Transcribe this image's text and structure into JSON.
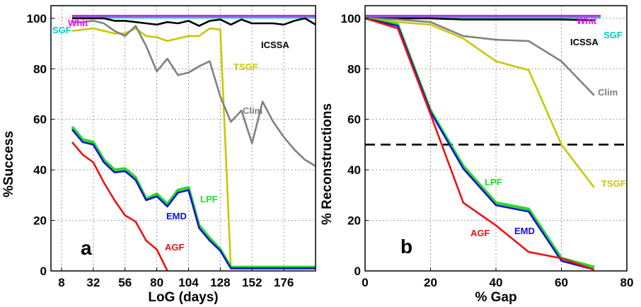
{
  "chart_data": [
    {
      "type": "line",
      "panel_label": "a",
      "xlabel": "LoG (days)",
      "ylabel": "%Success",
      "xlim": [
        0,
        200
      ],
      "ylim": [
        0,
        105
      ],
      "xticks": [
        8,
        32,
        56,
        80,
        104,
        128,
        152,
        176
      ],
      "yticks": [
        0,
        20,
        40,
        60,
        80,
        100
      ],
      "grid": true,
      "series": [
        {
          "name": "Whit",
          "color": "#ff00ff",
          "x": [
            16,
            200
          ],
          "y": [
            101,
            101
          ]
        },
        {
          "name": "SGF",
          "color": "#00cccc",
          "x": [
            16,
            200
          ],
          "y": [
            100.3,
            100.3
          ]
        },
        {
          "name": "ICSSA",
          "color": "#000000",
          "x": [
            16,
            24,
            32,
            40,
            48,
            56,
            64,
            72,
            80,
            88,
            96,
            104,
            112,
            120,
            128,
            136,
            144,
            152,
            160,
            168,
            176,
            184,
            192,
            200
          ],
          "y": [
            100,
            100,
            100,
            100,
            99,
            99,
            98.5,
            98,
            97.5,
            98.5,
            98,
            99,
            97,
            99,
            99.5,
            97.5,
            99.5,
            98,
            98,
            98,
            97.5,
            99,
            100,
            97.5
          ]
        },
        {
          "name": "TSGF",
          "color": "#c8c800",
          "x": [
            16,
            24,
            32,
            40,
            48,
            56,
            64,
            72,
            80,
            88,
            96,
            104,
            112,
            120,
            128,
            136,
            200
          ],
          "y": [
            95,
            95.5,
            96,
            95,
            94,
            94,
            96,
            93,
            92.5,
            91,
            92,
            93,
            93,
            96,
            95.5,
            1,
            1
          ]
        },
        {
          "name": "Clim",
          "color": "#808080",
          "x": [
            16,
            24,
            32,
            40,
            48,
            56,
            64,
            72,
            80,
            88,
            96,
            104,
            112,
            120,
            128,
            136,
            144,
            152,
            160,
            168,
            176,
            184,
            192,
            200
          ],
          "y": [
            98.5,
            98.5,
            99,
            98,
            95,
            93,
            97,
            89,
            79,
            84,
            77.5,
            78.5,
            81,
            83,
            69,
            59,
            63.5,
            50.5,
            67,
            59,
            53,
            48,
            44,
            41.5
          ]
        },
        {
          "name": "LPF",
          "color": "#22dd22",
          "x": [
            16,
            24,
            32,
            40,
            48,
            56,
            64,
            72,
            80,
            88,
            96,
            104,
            112,
            120,
            128,
            136,
            200
          ],
          "y": [
            57,
            52,
            51,
            44,
            40,
            40.5,
            37,
            28.5,
            30.5,
            26.5,
            32,
            33,
            18,
            13,
            8.5,
            1.5,
            1.5
          ]
        },
        {
          "name": "EMD",
          "color": "#1010dd",
          "x": [
            16,
            24,
            32,
            40,
            48,
            56,
            64,
            72,
            80,
            88,
            96,
            104,
            112,
            120,
            128,
            136,
            200
          ],
          "y": [
            56,
            51,
            50,
            43,
            39,
            39.5,
            36,
            28,
            29.5,
            25.5,
            31,
            32,
            17,
            12,
            8,
            1,
            1
          ]
        },
        {
          "name": "AGF",
          "color": "#ee1111",
          "x": [
            16,
            24,
            32,
            40,
            48,
            56,
            64,
            72,
            80,
            88
          ],
          "y": [
            51,
            46,
            43,
            35,
            28,
            22,
            19.5,
            12,
            8.5,
            0
          ]
        }
      ]
    },
    {
      "type": "line",
      "panel_label": "b",
      "xlabel": "% Gap",
      "ylabel": "% Reconstructions",
      "xlim": [
        0,
        80
      ],
      "ylim": [
        0,
        105
      ],
      "xticks": [
        0,
        20,
        40,
        60,
        80
      ],
      "yticks": [
        0,
        20,
        40,
        60,
        80,
        100
      ],
      "grid": true,
      "reference_line": {
        "y": 50,
        "color": "#000000",
        "style": "dashed"
      },
      "series": [
        {
          "name": "Whit",
          "color": "#ff00ff",
          "x": [
            0,
            72
          ],
          "y": [
            101,
            101
          ]
        },
        {
          "name": "SGF",
          "color": "#00cccc",
          "x": [
            0,
            72
          ],
          "y": [
            100.3,
            100.3
          ]
        },
        {
          "name": "ICSSA",
          "color": "#000000",
          "x": [
            0,
            10,
            20,
            30,
            40,
            50,
            60,
            70
          ],
          "y": [
            100,
            100,
            100,
            99.5,
            99.5,
            99.5,
            99.5,
            99.2
          ]
        },
        {
          "name": "Clim",
          "color": "#808080",
          "x": [
            0,
            10,
            20,
            30,
            40,
            50,
            60,
            70
          ],
          "y": [
            100,
            99.5,
            98.5,
            93,
            91.5,
            91,
            83,
            69.5
          ]
        },
        {
          "name": "TSGF",
          "color": "#c8c800",
          "x": [
            0,
            10,
            20,
            30,
            40,
            50,
            60,
            70
          ],
          "y": [
            100,
            98.5,
            97.5,
            92,
            83,
            79.5,
            50,
            33
          ]
        },
        {
          "name": "LPF",
          "color": "#22dd22",
          "x": [
            0,
            10,
            20,
            30,
            40,
            50,
            60,
            70
          ],
          "y": [
            100,
            97.5,
            63.5,
            41.5,
            27,
            24.5,
            5,
            1.5
          ]
        },
        {
          "name": "EMD",
          "color": "#1010dd",
          "x": [
            0,
            10,
            20,
            30,
            40,
            50,
            60,
            70
          ],
          "y": [
            100,
            97,
            63,
            40.5,
            26,
            23.5,
            4,
            0.5
          ]
        },
        {
          "name": "AGF",
          "color": "#ee1111",
          "x": [
            0,
            10,
            20,
            30,
            40,
            50,
            60,
            70
          ],
          "y": [
            100,
            96,
            62,
            27,
            18,
            7.5,
            5,
            0.5
          ]
        }
      ]
    }
  ]
}
